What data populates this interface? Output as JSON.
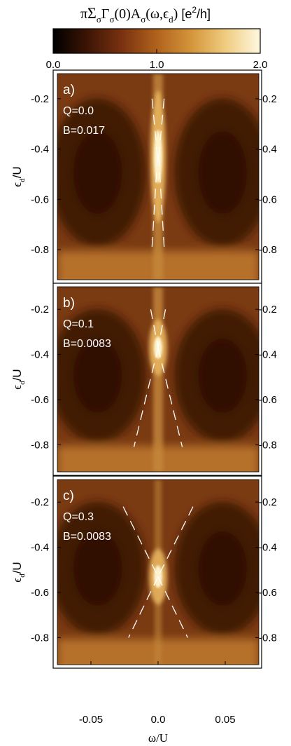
{
  "colorbar": {
    "title_pi": "π",
    "title_sigma": "Σ",
    "title_sigma_sub": "σ",
    "title_gamma": "Γ",
    "title_gamma_sub": "σ",
    "title_arg0": "(0)A",
    "title_a_sub": "σ",
    "title_args": "(ω,ϵ",
    "title_d_sub": "d",
    "title_close": ")",
    "title_units_pre": " [e",
    "title_units_sup": "2",
    "title_units_post": "/h]",
    "ticks": [
      "0.0",
      "1.0",
      "2.0"
    ],
    "range": [
      0,
      2
    ],
    "colors": [
      "#000000",
      "#3d1505",
      "#7a3210",
      "#b0621c",
      "#d4953a",
      "#f0cc80",
      "#fff8e0"
    ]
  },
  "xlabel": "ω/U",
  "ylabel_eps": "ϵ",
  "ylabel_sub": "d",
  "ylabel_post": "/U",
  "chart_data": [
    {
      "type": "heatmap",
      "panel": "a)",
      "q_label": "Q=0.0",
      "b_label": "B=0.017",
      "xlim": [
        -0.075,
        0.075
      ],
      "ylim": [
        -0.92,
        -0.1
      ],
      "x_ticks": [
        "-0.05",
        "0.0",
        "0.05"
      ],
      "y_ticks": [
        "-0.2",
        "-0.4",
        "-0.6",
        "-0.8"
      ],
      "y_tick_values": [
        -0.2,
        -0.4,
        -0.6,
        -0.8
      ],
      "peak_eps": -0.43,
      "dashed_lines": [
        {
          "x": [
            -0.0045,
            -0.0005
          ],
          "y": [
            -0.2,
            -0.43
          ]
        },
        {
          "x": [
            -0.0005,
            -0.0045
          ],
          "y": [
            -0.43,
            -0.79
          ]
        },
        {
          "x": [
            0.0045,
            0.0005
          ],
          "y": [
            -0.2,
            -0.43
          ]
        },
        {
          "x": [
            0.0005,
            0.0045
          ],
          "y": [
            -0.43,
            -0.79
          ]
        }
      ]
    },
    {
      "type": "heatmap",
      "panel": "b)",
      "q_label": "Q=0.1",
      "b_label": "B=0.0083",
      "xlim": [
        -0.075,
        0.075
      ],
      "ylim": [
        -0.92,
        -0.1
      ],
      "x_ticks": [
        "-0.05",
        "0.0",
        "0.05"
      ],
      "y_ticks": [
        "-0.2",
        "-0.4",
        "-0.6",
        "-0.8"
      ],
      "y_tick_values": [
        -0.2,
        -0.4,
        -0.6,
        -0.8
      ],
      "peak_eps": -0.37,
      "dashed_lines": [
        {
          "x": [
            -0.0055,
            0.0
          ],
          "y": [
            -0.2,
            -0.37
          ]
        },
        {
          "x": [
            0.0,
            -0.018
          ],
          "y": [
            -0.37,
            -0.81
          ]
        },
        {
          "x": [
            0.0055,
            0.0
          ],
          "y": [
            -0.2,
            -0.37
          ]
        },
        {
          "x": [
            0.0,
            0.018
          ],
          "y": [
            -0.37,
            -0.81
          ]
        }
      ]
    },
    {
      "type": "heatmap",
      "panel": "c)",
      "q_label": "Q=0.3",
      "b_label": "B=0.0083",
      "xlim": [
        -0.075,
        0.075
      ],
      "ylim": [
        -0.92,
        -0.1
      ],
      "x_ticks": [
        "-0.05",
        "0.0",
        "0.05"
      ],
      "y_ticks": [
        "-0.2",
        "-0.4",
        "-0.6",
        "-0.8"
      ],
      "y_tick_values": [
        -0.2,
        -0.4,
        -0.6,
        -0.8
      ],
      "peak_eps": -0.53,
      "dashed_lines": [
        {
          "x": [
            -0.026,
            0.0
          ],
          "y": [
            -0.22,
            -0.53
          ]
        },
        {
          "x": [
            0.0,
            -0.022
          ],
          "y": [
            -0.53,
            -0.8
          ]
        },
        {
          "x": [
            0.026,
            0.0
          ],
          "y": [
            -0.22,
            -0.53
          ]
        },
        {
          "x": [
            0.0,
            0.022
          ],
          "y": [
            -0.53,
            -0.8
          ]
        }
      ]
    }
  ]
}
